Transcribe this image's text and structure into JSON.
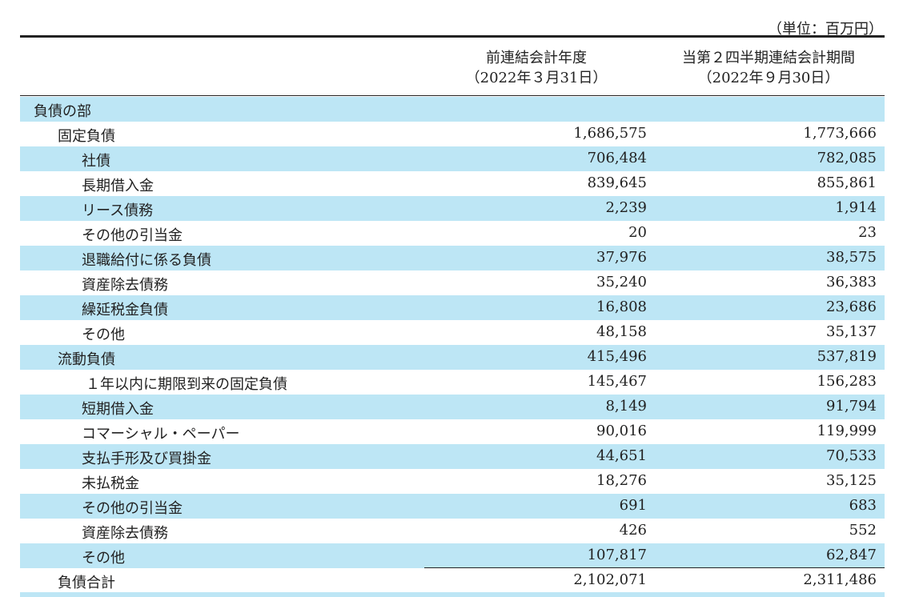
{
  "unit": "（単位：百万円）",
  "header": {
    "columns": [
      {
        "title": "前連結会計年度",
        "date": "（2022年３月31日）"
      },
      {
        "title": "当第２四半期連結会計期間",
        "date": "（2022年９月30日）"
      }
    ]
  },
  "table": {
    "rows": [
      {
        "label": "負債の部"
      },
      {
        "label": "固定負債",
        "values": [
          "1,686,575",
          "1,773,666"
        ]
      },
      {
        "label": "社債",
        "values": [
          "706,484",
          "782,085"
        ]
      },
      {
        "label": "長期借入金",
        "values": [
          "839,645",
          "855,861"
        ]
      },
      {
        "label": "リース債務",
        "values": [
          "2,239",
          "1,914"
        ]
      },
      {
        "label": "その他の引当金",
        "values": [
          "20",
          "23"
        ]
      },
      {
        "label": "退職給付に係る負債",
        "values": [
          "37,976",
          "38,575"
        ]
      },
      {
        "label": "資産除去債務",
        "values": [
          "35,240",
          "36,383"
        ]
      },
      {
        "label": "繰延税金負債",
        "values": [
          "16,808",
          "23,686"
        ]
      },
      {
        "label": "その他",
        "values": [
          "48,158",
          "35,137"
        ]
      },
      {
        "label": "流動負債",
        "values": [
          "415,496",
          "537,819"
        ]
      },
      {
        "label": "１年以内に期限到来の固定負債",
        "values": [
          "145,467",
          "156,283"
        ]
      },
      {
        "label": "短期借入金",
        "values": [
          "8,149",
          "91,794"
        ]
      },
      {
        "label": "コマーシャル・ペーパー",
        "values": [
          "90,016",
          "119,999"
        ]
      },
      {
        "label": "支払手形及び買掛金",
        "values": [
          "44,651",
          "70,533"
        ]
      },
      {
        "label": "未払税金",
        "values": [
          "18,276",
          "35,125"
        ]
      },
      {
        "label": "その他の引当金",
        "values": [
          "691",
          "683"
        ]
      },
      {
        "label": "資産除去債務",
        "values": [
          "426",
          "552"
        ]
      },
      {
        "label": "その他",
        "values": [
          "107,817",
          "62,847"
        ]
      },
      {
        "label": "負債合計",
        "values": [
          "2,102,071",
          "2,311,486"
        ]
      }
    ]
  }
}
